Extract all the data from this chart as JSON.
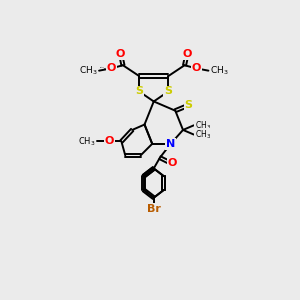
{
  "background_color": "#ebebeb",
  "atom_colors": {
    "S": "#cccc00",
    "N": "#0000ff",
    "O": "#ff0000",
    "Br": "#b85c00",
    "C": "#000000"
  },
  "figsize": [
    3.0,
    3.0
  ],
  "dpi": 100
}
